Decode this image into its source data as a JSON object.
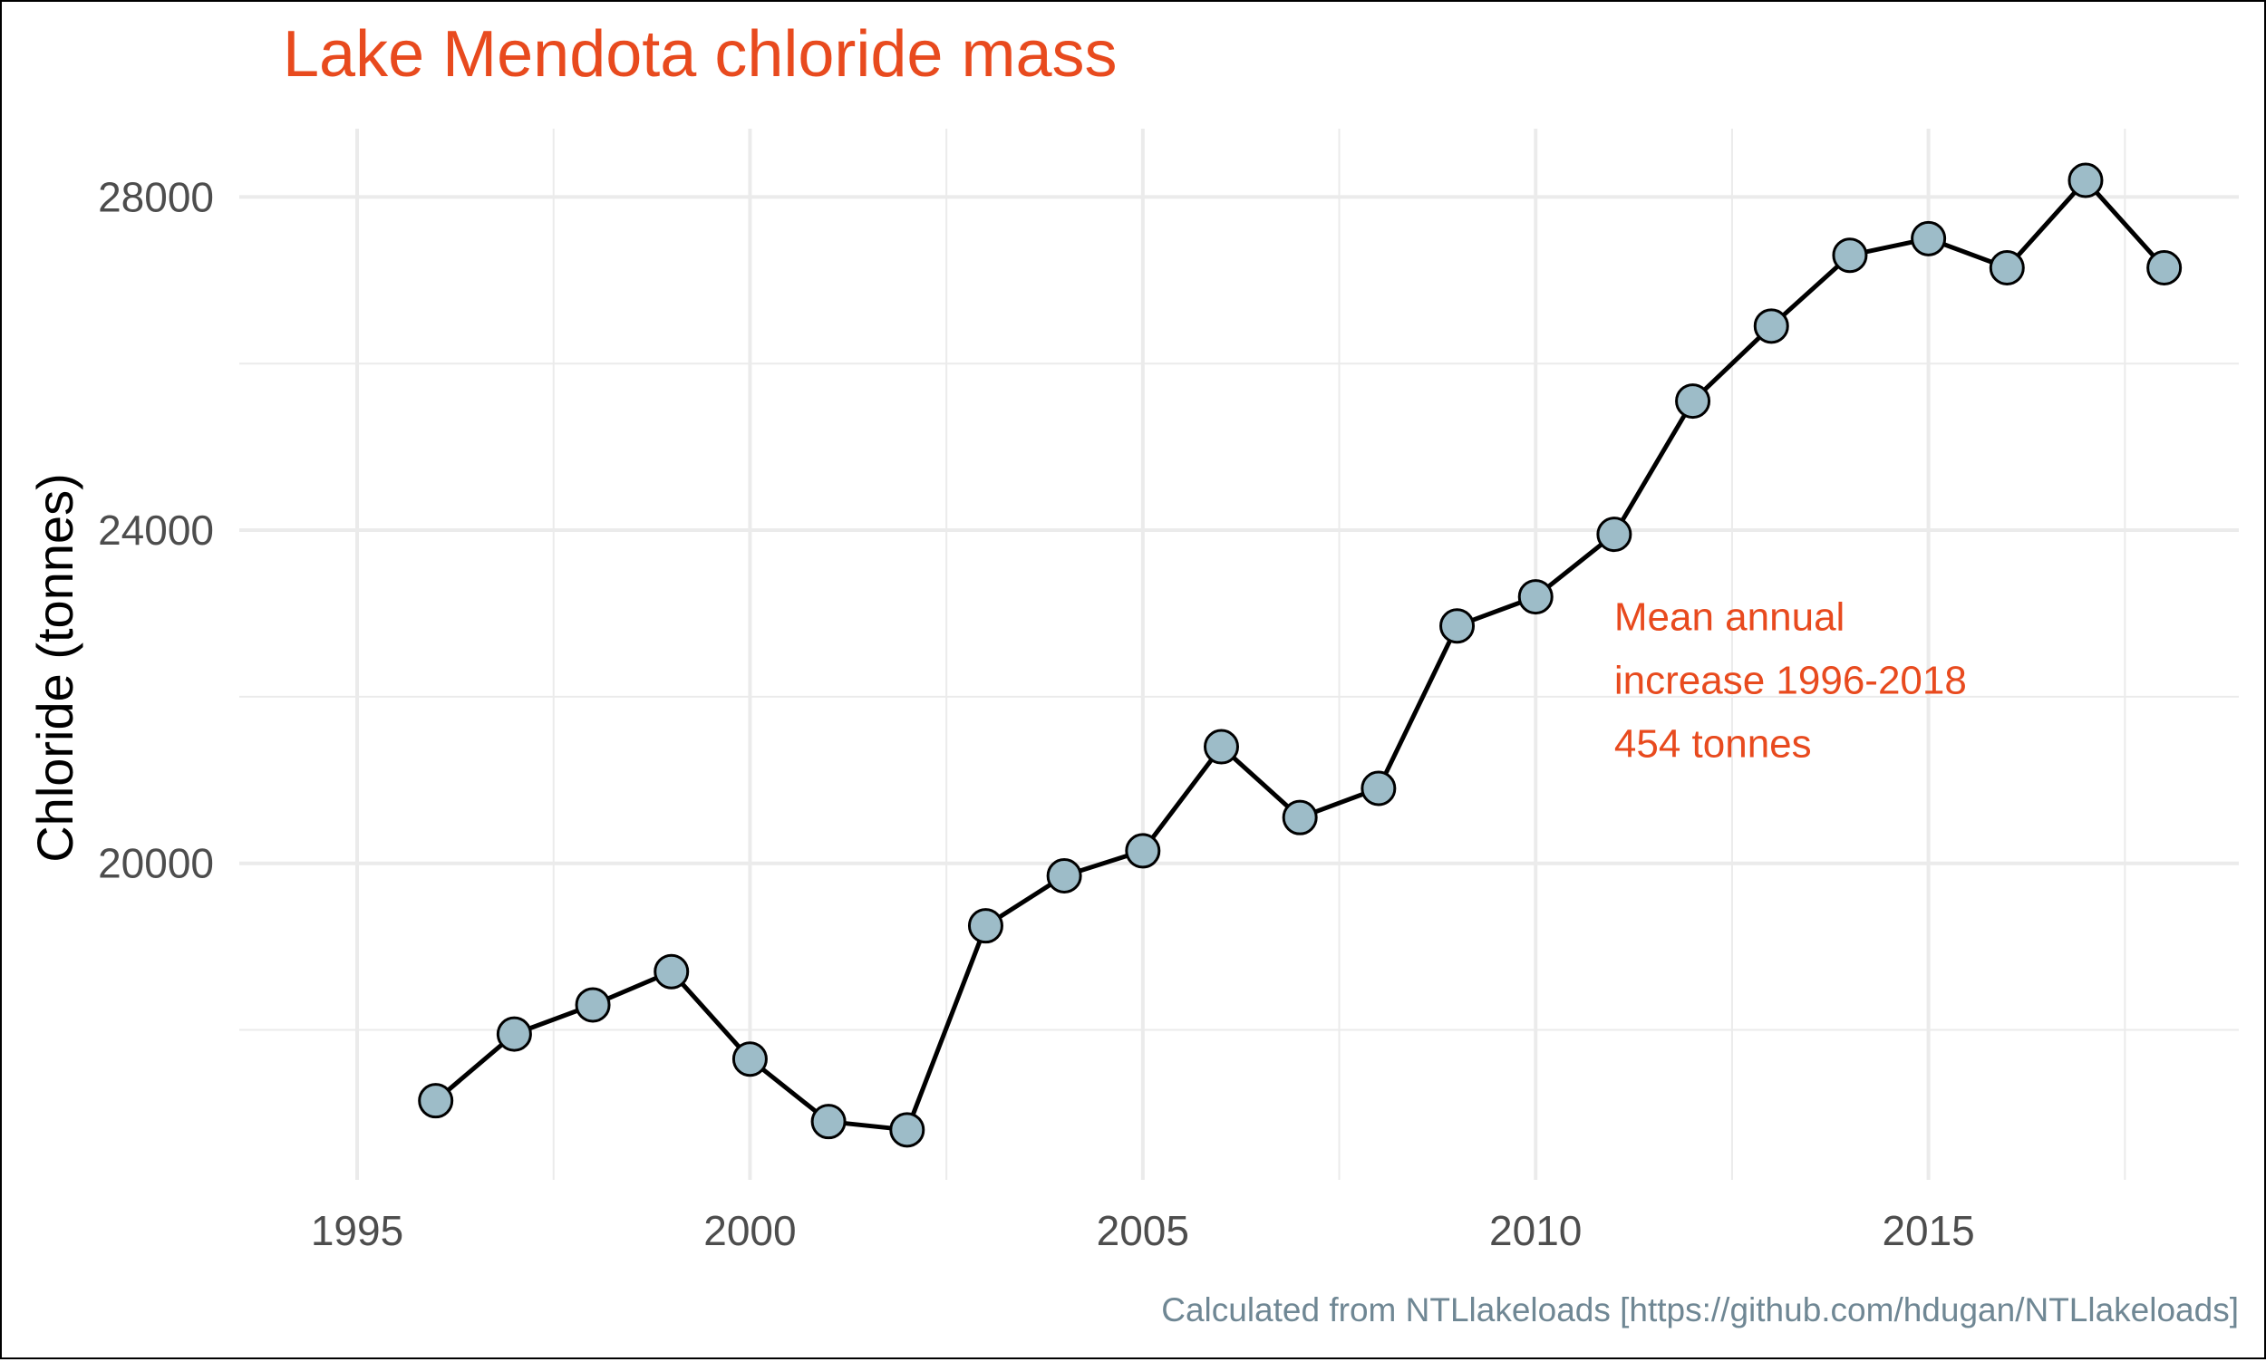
{
  "chart_data": {
    "type": "line",
    "title": "Lake Mendota chloride mass",
    "xlabel": "",
    "ylabel": "Chloride (tonnes)",
    "xlim": [
      1993.5,
      2018.95
    ],
    "ylim": [
      16200,
      28820
    ],
    "x_ticks": [
      1995,
      2000,
      2005,
      2010,
      2015
    ],
    "y_ticks": [
      20000,
      24000,
      28000
    ],
    "grid": true,
    "legend": "none",
    "caption": "Calculated from NTLlakeloads [https://github.com/hdugan/NTLlakeloads]",
    "annotation": {
      "lines": [
        "Mean annual",
        "increase 1996-2018",
        "454 tonnes"
      ],
      "x": 2011,
      "y": 22800
    },
    "series": [
      {
        "x": [
          1996,
          1997,
          1998,
          1999,
          2000,
          2001,
          2002,
          2003,
          2004,
          2005,
          2006,
          2007,
          2008,
          2009,
          2010,
          2011,
          2012,
          2013,
          2014,
          2015,
          2016,
          2017,
          2018
        ],
        "values": [
          17150,
          17950,
          18300,
          18700,
          17650,
          16900,
          16800,
          19250,
          19850,
          20150,
          21400,
          20550,
          20900,
          22850,
          23200,
          23950,
          25550,
          26450,
          27300,
          27500,
          27150,
          28200,
          27150
        ]
      }
    ],
    "colors": {
      "title": "#e84a1e",
      "annotation": "#e84a1e",
      "caption": "#6f8794",
      "line": "#000000",
      "marker_fill": "#9dbcc8",
      "grid": "#ebebeb",
      "tick_label": "#4d4d4d"
    }
  }
}
